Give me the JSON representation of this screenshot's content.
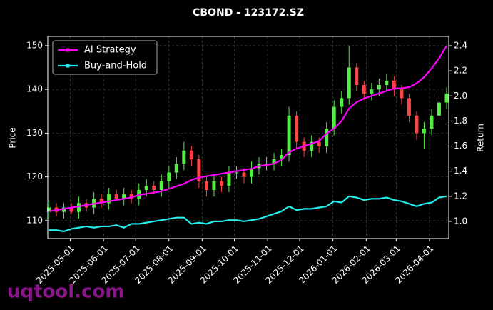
{
  "chart_data": {
    "type": "candlestick",
    "title": "CBOND - 123172.SZ",
    "ylabel": "Price",
    "y2label": "Return",
    "watermark": "uqtool.com",
    "x": [
      "2025-04-11",
      "2025-04-18",
      "2025-04-25",
      "2025-05-02",
      "2025-05-09",
      "2025-05-16",
      "2025-05-23",
      "2025-05-30",
      "2025-06-06",
      "2025-06-13",
      "2025-06-20",
      "2025-06-27",
      "2025-07-04",
      "2025-07-11",
      "2025-07-18",
      "2025-07-25",
      "2025-08-01",
      "2025-08-08",
      "2025-08-15",
      "2025-08-22",
      "2025-08-29",
      "2025-09-05",
      "2025-09-12",
      "2025-09-19",
      "2025-09-26",
      "2025-10-03",
      "2025-10-10",
      "2025-10-17",
      "2025-10-24",
      "2025-10-31",
      "2025-11-07",
      "2025-11-14",
      "2025-11-21",
      "2025-11-28",
      "2025-12-05",
      "2025-12-12",
      "2025-12-19",
      "2025-12-26",
      "2026-01-02",
      "2026-01-09",
      "2026-01-16",
      "2026-01-23",
      "2026-01-30",
      "2026-02-06",
      "2026-02-13",
      "2026-02-20",
      "2026-02-27",
      "2026-03-06",
      "2026-03-13",
      "2026-03-20",
      "2026-03-27",
      "2026-04-03",
      "2026-04-10",
      "2026-04-17"
    ],
    "open": [
      112,
      113,
      112,
      113,
      112,
      114,
      113,
      115,
      114,
      116,
      115,
      116,
      115,
      117,
      118,
      117,
      119,
      121,
      123,
      126,
      124,
      119,
      117,
      119,
      118,
      121,
      121,
      120,
      122,
      123,
      123,
      124,
      125,
      134,
      128,
      126,
      128,
      127,
      131,
      136,
      138,
      145,
      141,
      139,
      140,
      141,
      142,
      140,
      138,
      134,
      130,
      131,
      134,
      137
    ],
    "high": [
      114.5,
      114,
      114,
      114,
      115.5,
      115,
      116.5,
      116,
      117.5,
      117,
      117.5,
      117,
      118.5,
      119.5,
      119,
      120.5,
      122.5,
      124.5,
      128,
      127,
      125,
      120,
      120.5,
      120,
      122.5,
      122.5,
      122,
      123.5,
      124.5,
      124.5,
      125.5,
      126.5,
      136,
      135,
      129,
      129.5,
      129,
      132.5,
      137.5,
      139.5,
      150,
      146,
      142,
      141.5,
      142.5,
      143.5,
      143,
      141,
      139,
      135,
      132.5,
      135.5,
      138.5,
      140.5
    ],
    "low": [
      110.5,
      111,
      110.5,
      111.5,
      110.5,
      112,
      111.5,
      113,
      112.5,
      114.5,
      113.5,
      114,
      113.5,
      115.5,
      116,
      115.5,
      117.5,
      119.5,
      121.5,
      122.5,
      117.5,
      115.5,
      115.5,
      116.5,
      116.5,
      119.5,
      118.5,
      118.5,
      120.5,
      121.5,
      121.5,
      122.5,
      123.5,
      126.5,
      124.5,
      124.5,
      125.5,
      125.5,
      129.5,
      134.5,
      136.5,
      139.5,
      137.5,
      137.5,
      138.5,
      139.5,
      138.5,
      136.5,
      132.5,
      128.5,
      126.5,
      129.5,
      132.5,
      135.5
    ],
    "close": [
      113,
      112,
      113,
      112,
      114,
      113,
      115,
      114,
      116,
      115,
      116,
      115,
      117,
      118,
      117,
      119,
      121,
      123,
      126,
      124,
      119,
      117,
      119,
      118,
      121,
      121,
      120,
      122,
      123,
      123,
      124,
      125,
      134,
      128,
      126,
      128,
      127,
      131,
      136,
      138,
      145,
      141,
      139,
      140,
      141,
      142,
      140,
      138,
      134,
      130,
      131,
      134,
      137,
      139
    ],
    "up_color": "#55ee44",
    "down_color": "#ff4444",
    "series": [
      {
        "name": "AI Strategy",
        "color": "#ff00ff",
        "axis": "y2",
        "values": [
          1.08,
          1.09,
          1.1,
          1.11,
          1.12,
          1.13,
          1.14,
          1.15,
          1.16,
          1.17,
          1.18,
          1.19,
          1.21,
          1.22,
          1.23,
          1.24,
          1.26,
          1.28,
          1.3,
          1.33,
          1.35,
          1.36,
          1.37,
          1.38,
          1.39,
          1.4,
          1.41,
          1.42,
          1.44,
          1.45,
          1.46,
          1.49,
          1.55,
          1.58,
          1.6,
          1.62,
          1.64,
          1.7,
          1.74,
          1.8,
          1.9,
          1.95,
          1.98,
          2.0,
          2.02,
          2.04,
          2.06,
          2.06,
          2.07,
          2.1,
          2.15,
          2.22,
          2.3,
          2.4
        ]
      },
      {
        "name": "Buy-and-Hold",
        "color": "#22eeee",
        "axis": "y2",
        "values": [
          0.93,
          0.93,
          0.92,
          0.94,
          0.95,
          0.96,
          0.95,
          0.96,
          0.96,
          0.97,
          0.95,
          0.98,
          0.98,
          0.99,
          1.0,
          1.01,
          1.02,
          1.03,
          1.03,
          0.98,
          0.99,
          0.98,
          1.0,
          1.0,
          1.01,
          1.01,
          1.0,
          1.01,
          1.02,
          1.04,
          1.06,
          1.08,
          1.12,
          1.09,
          1.1,
          1.1,
          1.11,
          1.12,
          1.16,
          1.15,
          1.2,
          1.19,
          1.17,
          1.18,
          1.18,
          1.19,
          1.17,
          1.16,
          1.14,
          1.12,
          1.14,
          1.15,
          1.19,
          1.2
        ]
      }
    ],
    "xlim": [
      "2025-04-10",
      "2026-04-19"
    ],
    "xticks": [
      "2025-05-01",
      "2025-06-01",
      "2025-07-01",
      "2025-08-01",
      "2025-09-01",
      "2025-10-01",
      "2025-11-01",
      "2025-12-01",
      "2026-01-01",
      "2026-02-01",
      "2026-03-01",
      "2026-04-01"
    ],
    "ylim": [
      105.9,
      152.1
    ],
    "yticks": [
      110,
      120,
      130,
      140,
      150
    ],
    "y2lim": [
      0.863,
      2.474
    ],
    "y2ticks": [
      {
        "value": 1,
        "label": "1.0"
      },
      1.2,
      1.4,
      1.6,
      1.8,
      {
        "value": 2,
        "label": "2.0"
      },
      2.2,
      2.4
    ],
    "grid": true,
    "legend": "upper left"
  }
}
